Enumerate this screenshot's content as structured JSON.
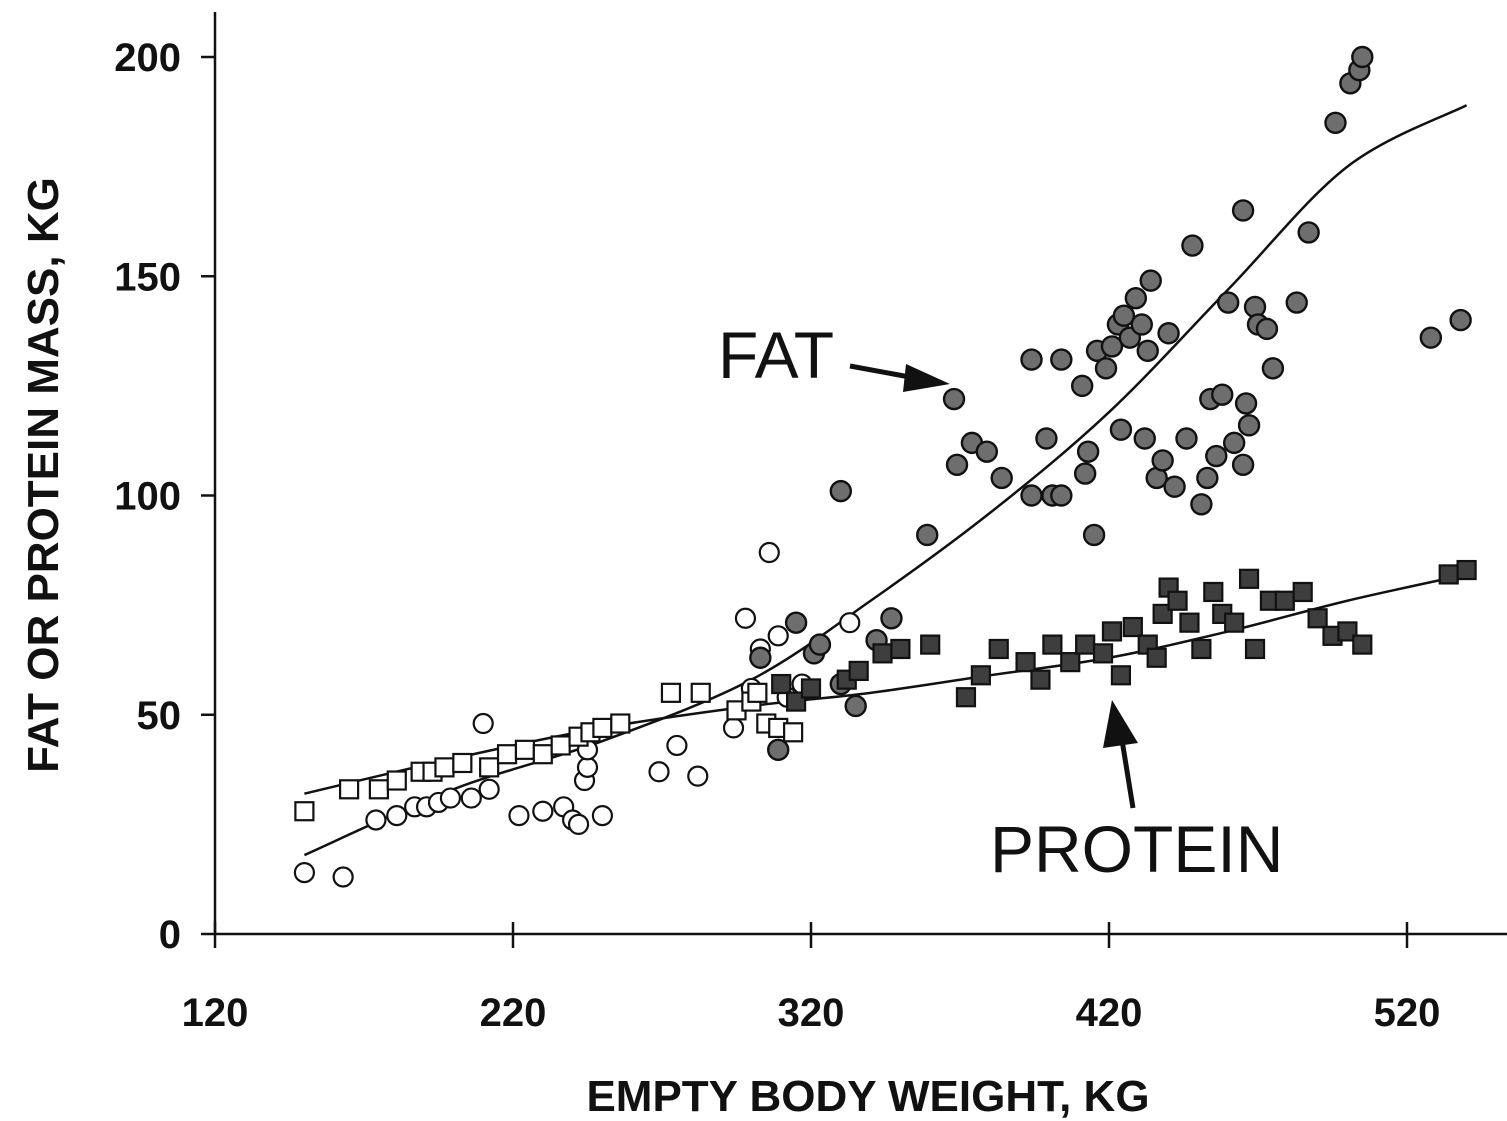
{
  "chart_data": {
    "type": "scatter",
    "title": "",
    "xlabel": "EMPTY BODY WEIGHT, KG",
    "ylabel": "FAT OR PROTEIN MASS, KG",
    "xlim": [
      120,
      555
    ],
    "ylim": [
      0,
      210
    ],
    "x_ticks": [
      120,
      220,
      320,
      420,
      520
    ],
    "y_ticks": [
      0,
      50,
      100,
      150,
      200
    ],
    "grid": false,
    "annotations": [
      {
        "text": "FAT",
        "points_to": "fat fit curve"
      },
      {
        "text": "PROTEIN",
        "points_to": "protein fit curve"
      }
    ],
    "series": [
      {
        "marker": "open-circle",
        "points": [
          [
            150,
            14
          ],
          [
            163,
            13
          ],
          [
            174,
            26
          ],
          [
            181,
            27
          ],
          [
            187,
            29
          ],
          [
            191,
            29
          ],
          [
            195,
            30
          ],
          [
            199,
            31
          ],
          [
            206,
            31
          ],
          [
            210,
            48
          ],
          [
            212,
            33
          ],
          [
            222,
            27
          ],
          [
            230,
            28
          ],
          [
            237,
            29
          ],
          [
            240,
            26
          ],
          [
            242,
            25
          ],
          [
            244,
            35
          ],
          [
            245,
            38
          ],
          [
            245,
            42
          ],
          [
            250,
            27
          ],
          [
            269,
            37
          ],
          [
            275,
            43
          ],
          [
            282,
            36
          ],
          [
            294,
            47
          ],
          [
            298,
            72
          ],
          [
            300,
            56
          ],
          [
            303,
            65
          ],
          [
            306,
            87
          ],
          [
            309,
            68
          ],
          [
            312,
            54
          ],
          [
            317,
            57
          ],
          [
            333,
            71
          ]
        ]
      },
      {
        "marker": "open-square",
        "points": [
          [
            150,
            28
          ],
          [
            165,
            33
          ],
          [
            175,
            33
          ],
          [
            181,
            35
          ],
          [
            189,
            37
          ],
          [
            193,
            37
          ],
          [
            197,
            38
          ],
          [
            203,
            39
          ],
          [
            212,
            38
          ],
          [
            218,
            41
          ],
          [
            224,
            42
          ],
          [
            230,
            41
          ],
          [
            236,
            43
          ],
          [
            242,
            45
          ],
          [
            246,
            46
          ],
          [
            250,
            47
          ],
          [
            256,
            48
          ],
          [
            273,
            55
          ],
          [
            283,
            55
          ],
          [
            295,
            51
          ],
          [
            300,
            53
          ],
          [
            302,
            55
          ],
          [
            305,
            48
          ],
          [
            309,
            47
          ],
          [
            314,
            46
          ]
        ]
      },
      {
        "marker": "filled-circle",
        "points": [
          [
            303,
            63
          ],
          [
            309,
            42
          ],
          [
            315,
            71
          ],
          [
            321,
            64
          ],
          [
            323,
            66
          ],
          [
            330,
            57
          ],
          [
            330,
            101
          ],
          [
            335,
            52
          ],
          [
            342,
            67
          ],
          [
            347,
            72
          ],
          [
            359,
            91
          ],
          [
            368,
            122
          ],
          [
            369,
            107
          ],
          [
            374,
            112
          ],
          [
            379,
            110
          ],
          [
            384,
            104
          ],
          [
            394,
            100
          ],
          [
            394,
            131
          ],
          [
            399,
            113
          ],
          [
            401,
            100
          ],
          [
            404,
            100
          ],
          [
            404,
            131
          ],
          [
            411,
            125
          ],
          [
            412,
            105
          ],
          [
            413,
            110
          ],
          [
            415,
            91
          ],
          [
            416,
            133
          ],
          [
            419,
            129
          ],
          [
            421,
            134
          ],
          [
            423,
            139
          ],
          [
            424,
            115
          ],
          [
            425,
            141
          ],
          [
            427,
            136
          ],
          [
            429,
            145
          ],
          [
            431,
            139
          ],
          [
            432,
            113
          ],
          [
            433,
            133
          ],
          [
            434,
            149
          ],
          [
            436,
            104
          ],
          [
            438,
            108
          ],
          [
            440,
            137
          ],
          [
            442,
            102
          ],
          [
            446,
            113
          ],
          [
            448,
            157
          ],
          [
            451,
            98
          ],
          [
            453,
            104
          ],
          [
            454,
            122
          ],
          [
            456,
            109
          ],
          [
            458,
            123
          ],
          [
            460,
            144
          ],
          [
            462,
            112
          ],
          [
            465,
            165
          ],
          [
            465,
            107
          ],
          [
            466,
            121
          ],
          [
            467,
            116
          ],
          [
            469,
            143
          ],
          [
            470,
            139
          ],
          [
            473,
            138
          ],
          [
            475,
            129
          ],
          [
            483,
            144
          ],
          [
            487,
            160
          ],
          [
            496,
            185
          ],
          [
            501,
            194
          ],
          [
            504,
            197
          ],
          [
            505,
            200
          ],
          [
            528,
            136
          ],
          [
            538,
            140
          ]
        ]
      },
      {
        "marker": "filled-square",
        "points": [
          [
            310,
            57
          ],
          [
            315,
            53
          ],
          [
            320,
            56
          ],
          [
            332,
            58
          ],
          [
            336,
            60
          ],
          [
            344,
            64
          ],
          [
            350,
            65
          ],
          [
            360,
            66
          ],
          [
            372,
            54
          ],
          [
            377,
            59
          ],
          [
            383,
            65
          ],
          [
            392,
            62
          ],
          [
            397,
            58
          ],
          [
            401,
            66
          ],
          [
            407,
            62
          ],
          [
            412,
            66
          ],
          [
            418,
            64
          ],
          [
            421,
            69
          ],
          [
            424,
            59
          ],
          [
            428,
            70
          ],
          [
            433,
            66
          ],
          [
            436,
            63
          ],
          [
            438,
            73
          ],
          [
            440,
            79
          ],
          [
            443,
            76
          ],
          [
            447,
            71
          ],
          [
            451,
            65
          ],
          [
            455,
            78
          ],
          [
            458,
            73
          ],
          [
            462,
            71
          ],
          [
            467,
            81
          ],
          [
            469,
            65
          ],
          [
            474,
            76
          ],
          [
            479,
            76
          ],
          [
            485,
            78
          ],
          [
            490,
            72
          ],
          [
            495,
            68
          ],
          [
            500,
            69
          ],
          [
            505,
            66
          ],
          [
            534,
            82
          ],
          [
            540,
            83
          ]
        ]
      }
    ],
    "fit_curves": [
      {
        "label": "FAT",
        "x": [
          150,
          200,
          250,
          300,
          340,
          380,
          420,
          460,
          500,
          540
        ],
        "y": [
          18,
          33,
          44,
          58,
          76,
          96,
          119,
          147,
          175,
          189
        ]
      },
      {
        "label": "PROTEIN",
        "x": [
          150,
          200,
          250,
          300,
          340,
          380,
          420,
          460,
          500,
          540
        ],
        "y": [
          32,
          40,
          47,
          52,
          55,
          59,
          63,
          69,
          76,
          82
        ]
      }
    ]
  }
}
